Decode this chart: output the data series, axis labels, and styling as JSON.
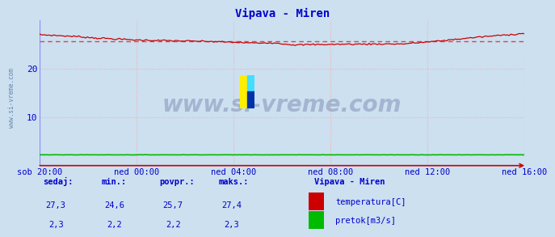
{
  "title": "Vipava - Miren",
  "fig_bg_color": "#cce0f0",
  "plot_bg_color": "#cce0f0",
  "title_color": "#0000cc",
  "text_color": "#0000cc",
  "temp_line_color": "#cc0000",
  "flow_line_color": "#00bb00",
  "avg_line_color": "#dd4444",
  "grid_color": "#ffaaaa",
  "axis_color": "#cc0000",
  "yaxis_line_color": "#8888ff",
  "xaxis_line_color": "#cc0000",
  "watermark": "www.si-vreme.com",
  "watermark_color": "#8899bb",
  "left_label": "www.si-vreme.com",
  "x_tick_labels": [
    "sob 20:00",
    "ned 00:00",
    "ned 04:00",
    "ned 08:00",
    "ned 12:00",
    "ned 16:00"
  ],
  "x_tick_positions": [
    0.0,
    0.2,
    0.4,
    0.6,
    0.8,
    1.0
  ],
  "ylim": [
    0,
    30
  ],
  "y_ticks": [
    10,
    20
  ],
  "temp_avg": 25.7,
  "temp_min": 24.6,
  "temp_max": 27.4,
  "flow_avg": 2.2,
  "flow_min": 2.2,
  "flow_max": 2.3,
  "n_points": 288,
  "legend_title": "Vipava - Miren",
  "legend_items": [
    "temperatura[C]",
    "pretok[m3/s]"
  ],
  "legend_colors": [
    "#cc0000",
    "#00bb00"
  ],
  "stats_headers": [
    "sedaj:",
    "min.:",
    "povpr.:",
    "maks.:"
  ],
  "stats_temp": [
    "27,3",
    "24,6",
    "25,7",
    "27,4"
  ],
  "stats_flow": [
    "2,3",
    "2,2",
    "2,2",
    "2,3"
  ]
}
